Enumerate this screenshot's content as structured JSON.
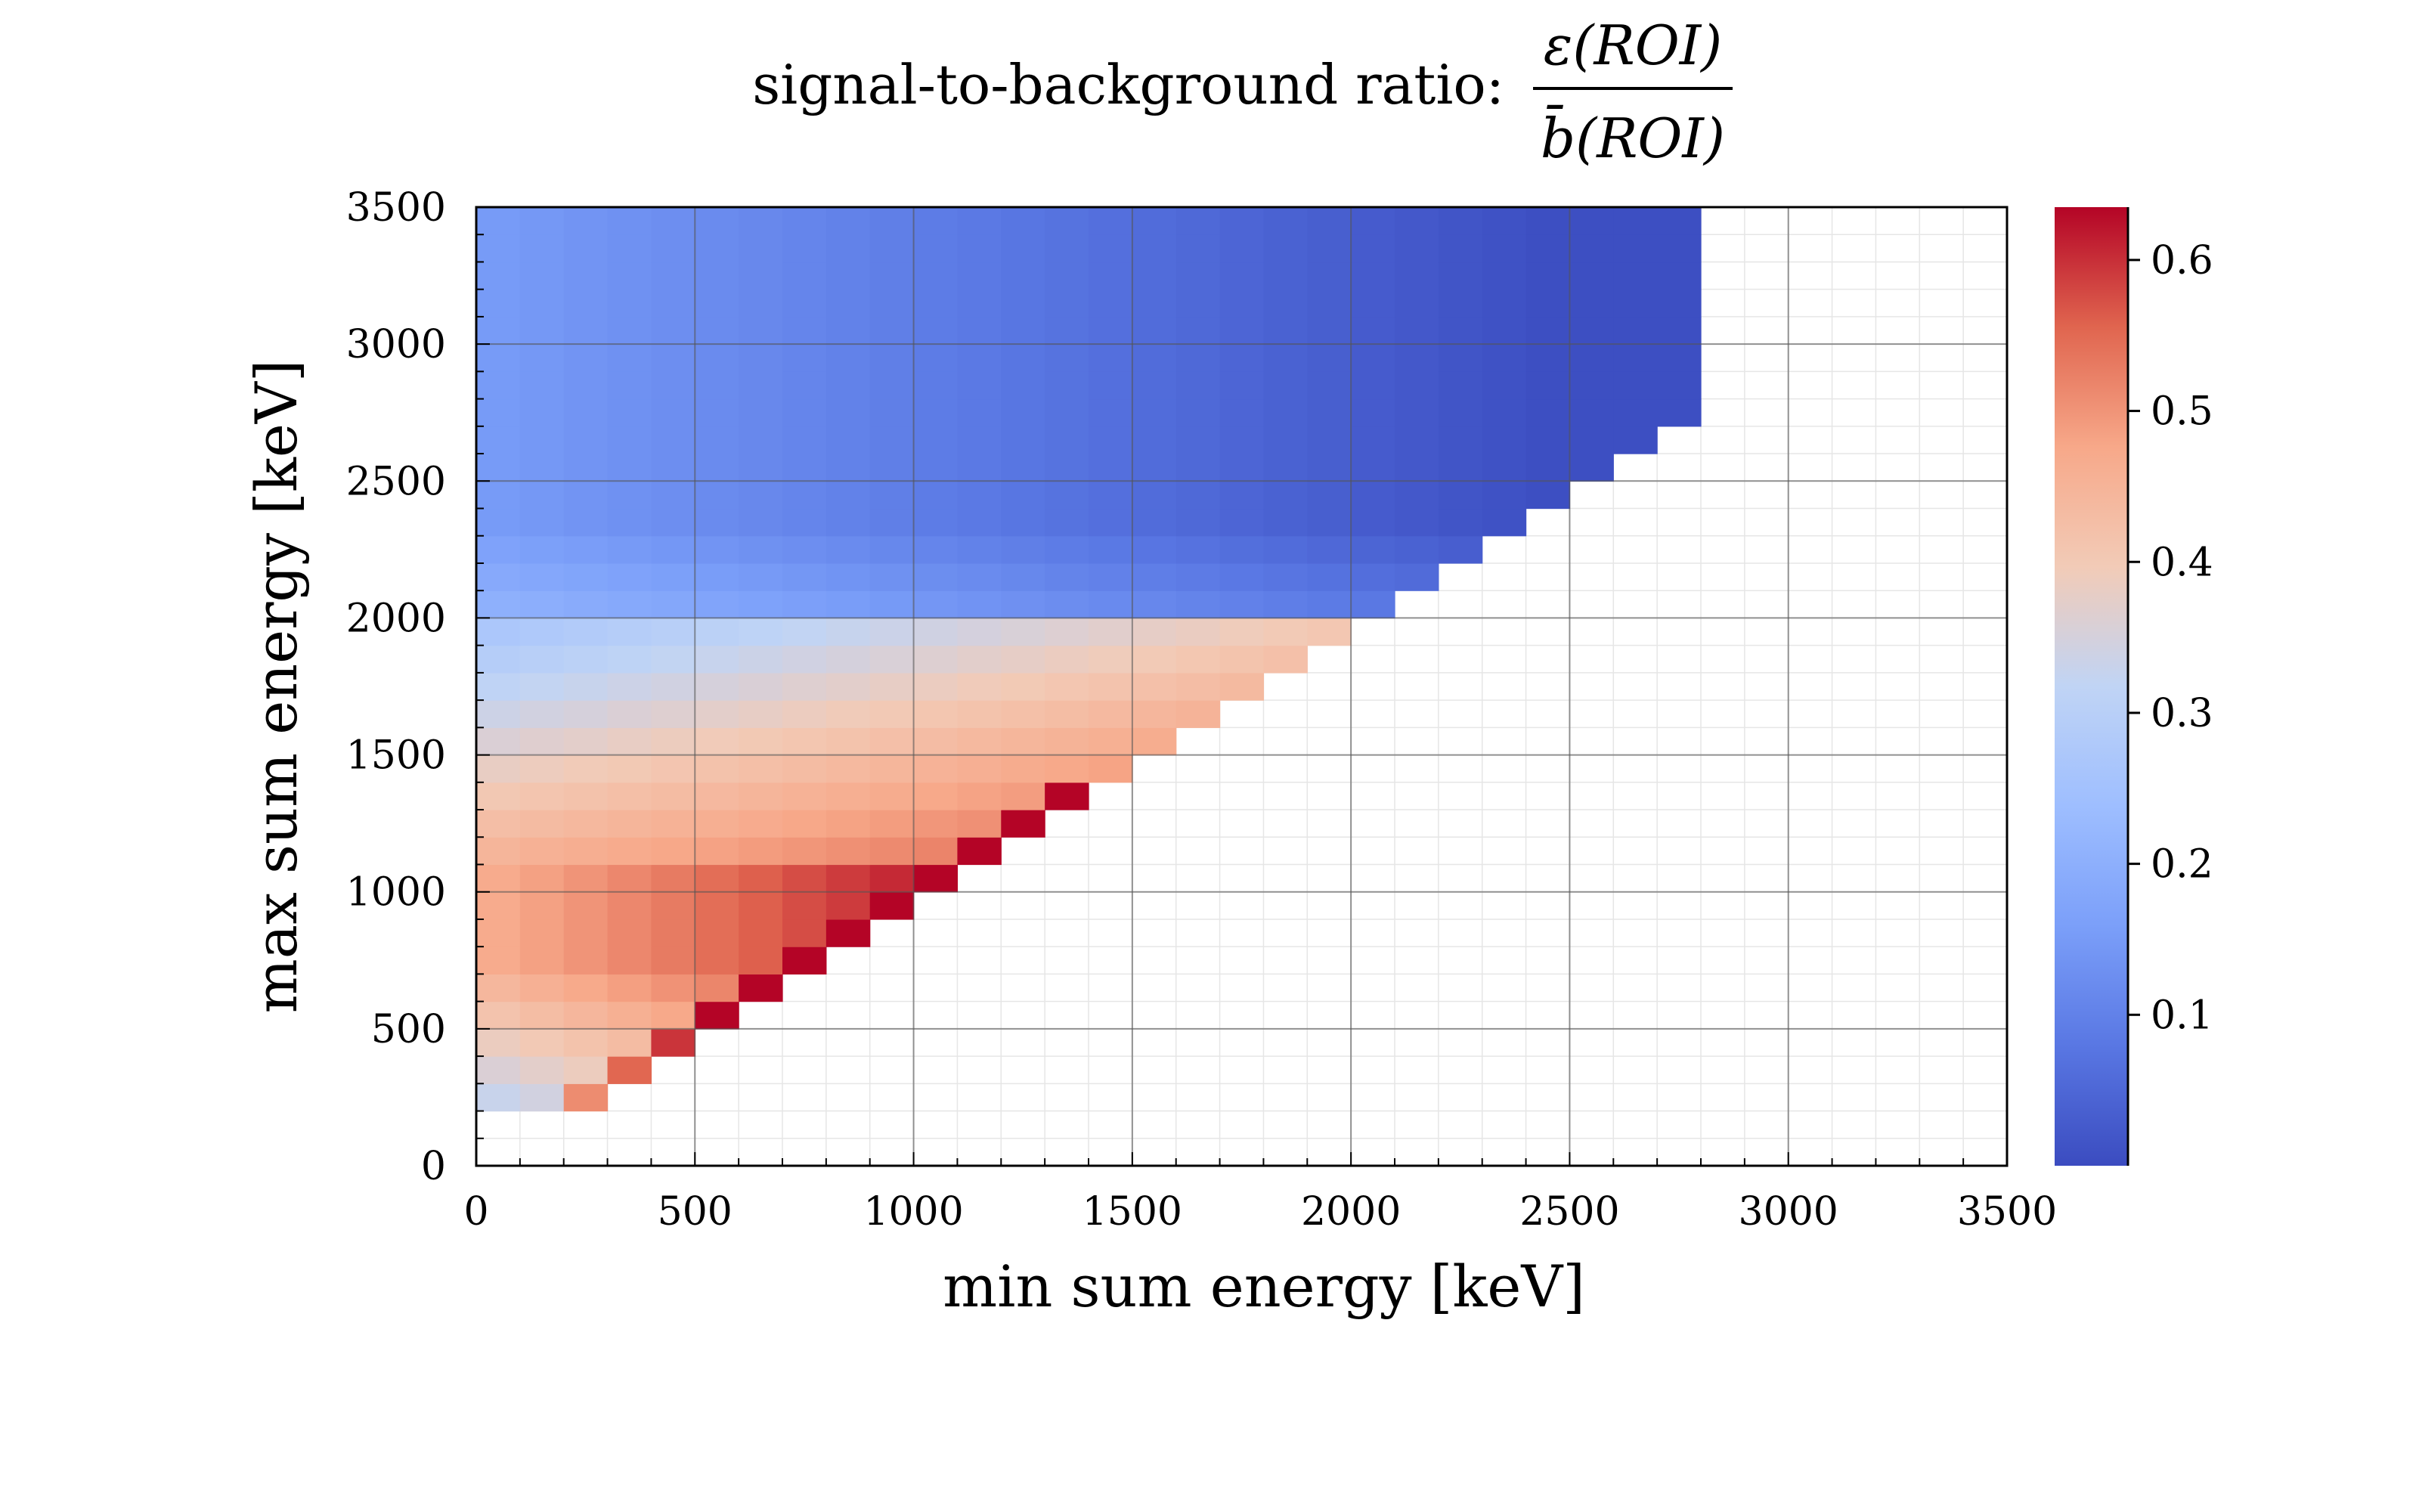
{
  "chart_data": {
    "type": "heatmap",
    "title": "signal-to-background ratio:",
    "title_fraction": {
      "numerator": "ε(ROI)",
      "denominator": "b̄(ROI)"
    },
    "xlabel": "min sum energy [keV]",
    "ylabel": "max sum energy [keV]",
    "xlim": [
      0,
      3500
    ],
    "ylim": [
      0,
      3500
    ],
    "xticks": [
      "0",
      "500",
      "1000",
      "1500",
      "2000",
      "2500",
      "3000",
      "3500"
    ],
    "yticks": [
      "0",
      "500",
      "1000",
      "1500",
      "2000",
      "2500",
      "3000",
      "3500"
    ],
    "bin_width": 100,
    "colorbar": {
      "range": [
        0,
        0.635
      ],
      "ticks": [
        "0.1",
        "0.2",
        "0.3",
        "0.4",
        "0.5",
        "0.6"
      ],
      "colormap": "coolwarm"
    },
    "bins": {
      "y_max_edges": [
        300,
        400,
        500,
        600,
        700,
        800,
        900,
        1000,
        1100,
        1200,
        1300,
        1400,
        1500,
        1600,
        1700,
        1800,
        1900,
        2000,
        2100,
        2200,
        2300,
        2400,
        2500,
        2600,
        2700,
        2800,
        2900,
        3000,
        3100,
        3200,
        3300,
        3400,
        3500
      ],
      "row_max_x": [
        300,
        400,
        500,
        600,
        700,
        800,
        900,
        1000,
        1100,
        1200,
        1300,
        1400,
        1500,
        1600,
        1700,
        1800,
        1900,
        2000,
        2100,
        2200,
        2300,
        2400,
        2500,
        2600,
        2700,
        2800,
        2800,
        2800,
        2800,
        2800,
        2800,
        2800,
        2800
      ]
    },
    "colors": {
      "grid": "#555555",
      "minor_grid": "#e6e6e6",
      "background": "#ffffff"
    }
  }
}
